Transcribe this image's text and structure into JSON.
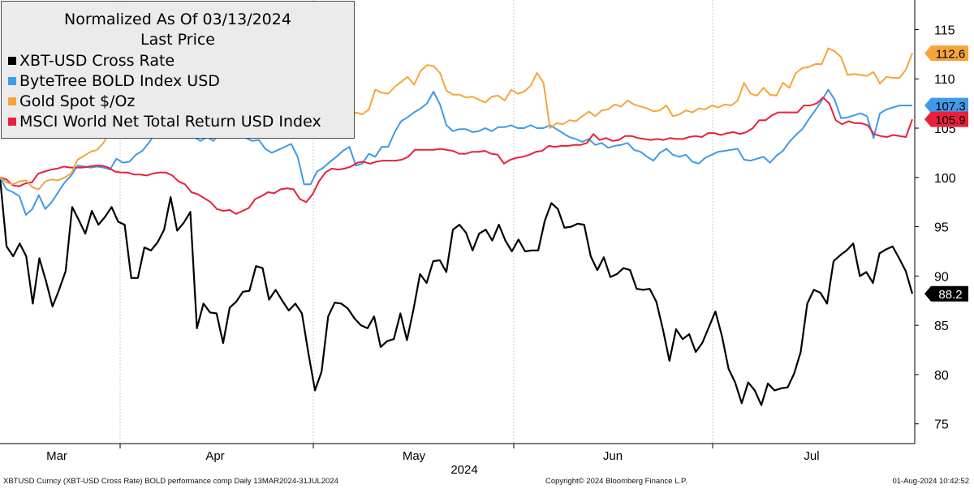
{
  "chart_data": {
    "type": "line",
    "title": "Normalized As Of 03/13/2024",
    "subtitle": "Last Price",
    "xlabel": "2024",
    "ylabel": "",
    "ylim": [
      73,
      118
    ],
    "x_start": "2024-03-13",
    "x_end": "2024-07-31",
    "month_labels": [
      "Mar",
      "Apr",
      "May",
      "Jun",
      "Jul"
    ],
    "yticks": [
      75,
      80,
      85,
      90,
      95,
      100,
      105,
      110,
      115
    ],
    "grid": "vertical month separators",
    "legend_position": "top-left",
    "series": [
      {
        "name": "XBT-USD Cross Rate",
        "color": "#000000",
        "last_value": "88.2",
        "values": [
          100,
          93,
          92,
          93.3,
          92,
          87.2,
          91.8,
          89.5,
          86.9,
          88.6,
          90.5,
          97,
          95.7,
          94.3,
          96.6,
          95.2,
          96,
          97,
          95.5,
          95.2,
          89.8,
          89.8,
          92.9,
          92.6,
          93.4,
          94.7,
          98,
          94.6,
          95.4,
          96.5,
          84.7,
          87.2,
          86.3,
          86.2,
          83.2,
          86.8,
          87.4,
          88.4,
          88.5,
          91,
          90.8,
          87.6,
          88.6,
          87.5,
          86.5,
          87.2,
          86.2,
          82.1,
          78.4,
          80.3,
          85.9,
          87.3,
          87.2,
          86.7,
          85.7,
          85,
          84.7,
          85.9,
          82.8,
          83.4,
          83.6,
          86.2,
          83.5,
          86.6,
          90.2,
          89.3,
          91.5,
          91.6,
          90.4,
          94.7,
          95.2,
          94.4,
          92.6,
          94.3,
          94.7,
          93.6,
          95.2,
          93.6,
          92.5,
          93.7,
          92.5,
          92.6,
          92.6,
          95.6,
          97.4,
          96.8,
          94.9,
          95,
          95.3,
          95.2,
          92,
          90.6,
          91.9,
          89.9,
          90.2,
          90.8,
          90.6,
          88.7,
          88.6,
          88.7,
          87.4,
          84.6,
          81.4,
          84.6,
          83.6,
          84.1,
          82.3,
          83.2,
          84.8,
          86.4,
          83.9,
          80.6,
          79.2,
          77.1,
          79.2,
          78.4,
          76.9,
          79.1,
          78.4,
          78.6,
          78.7,
          80.1,
          82.3,
          87.2,
          88.6,
          88.3,
          87.2,
          91.5,
          92.1,
          92.6,
          93.3,
          90,
          90.4,
          89.3,
          92.3,
          92.7,
          93,
          91.8,
          90.5,
          88.2
        ]
      },
      {
        "name": "ByteTree BOLD Index USD",
        "color": "#3f9ae8",
        "last_value": "107.3",
        "values": [
          100,
          98.8,
          98.5,
          98.1,
          96.2,
          96.8,
          98.2,
          96.8,
          97.5,
          98.5,
          99.5,
          100.2,
          101.2,
          101.1,
          101,
          101.1,
          101,
          100.8,
          101.9,
          101.5,
          101.6,
          102.3,
          102.7,
          103.5,
          104.5,
          105.5,
          106.2,
          107.2,
          106.3,
          104.8,
          104.1,
          103.7,
          104.1,
          103.7,
          104.6,
          104.3,
          104.8,
          104.6,
          104,
          103.7,
          103.8,
          102.9,
          102.5,
          102.8,
          103.1,
          103.4,
          102.1,
          99.3,
          99.3,
          100.6,
          101,
          101.6,
          102.1,
          102.7,
          103.1,
          101.2,
          101.4,
          102.4,
          102.1,
          103.1,
          103.1,
          104.6,
          105.7,
          106.1,
          106.6,
          107,
          107.5,
          108.7,
          107.4,
          105.3,
          104.7,
          104.9,
          104.9,
          104.6,
          104.7,
          105,
          104.7,
          105.1,
          105.1,
          105.3,
          105,
          105,
          105.3,
          105,
          105,
          105.3,
          104.9,
          104.5,
          104.1,
          103.9,
          103.6,
          103.9,
          103.3,
          103.5,
          103,
          103.2,
          103.3,
          103.5,
          102.8,
          102.6,
          102.1,
          101.7,
          102.5,
          102.9,
          102.3,
          102.1,
          102.3,
          101.6,
          101.4,
          102,
          102.3,
          102.6,
          102.7,
          102.8,
          102.9,
          101.8,
          101.7,
          101.9,
          102.1,
          101.5,
          102.2,
          102.7,
          103.6,
          104.3,
          104.9,
          105.9,
          106.8,
          107.8,
          108.9,
          107.9,
          106,
          106.1,
          106.3,
          106.5,
          106.2,
          104,
          106.5,
          106.9,
          107.1,
          107.3,
          107.3,
          107.3
        ]
      },
      {
        "name": "Gold Spot $/Oz",
        "color": "#f5a53a",
        "last_value": "112.6",
        "values": [
          100,
          99.5,
          99.3,
          99.6,
          99.7,
          99,
          98.8,
          99.6,
          99.8,
          99.7,
          100,
          100.4,
          101.8,
          102.2,
          102.6,
          102.8,
          103.5,
          104.7,
          105.1,
          105.2,
          105.6,
          105.8,
          107.7,
          107.8,
          107.9,
          107.9,
          107.4,
          108.4,
          107.3,
          107.6,
          107.7,
          107.3,
          106.7,
          106.3,
          105.6,
          106,
          106.5,
          106.4,
          106,
          106.4,
          105.9,
          107.3,
          106.6,
          106.9,
          106.6,
          106.4,
          105.7,
          105.7,
          105.4,
          105.6,
          105.3,
          106.3,
          105.6,
          106.4,
          105.9,
          106.6,
          106.4,
          106.9,
          108.9,
          108.6,
          108.5,
          109.2,
          109.7,
          110.2,
          109.4,
          110.8,
          111.4,
          111.3,
          110.6,
          108.8,
          108.4,
          108.4,
          108.1,
          108.2,
          107.9,
          107.6,
          108.2,
          108.3,
          107.8,
          108.9,
          108.5,
          108.7,
          109.3,
          110.6,
          109.6,
          105,
          105.5,
          105.4,
          105.8,
          105.7,
          106.2,
          106.7,
          106.2,
          106.8,
          106.9,
          107.4,
          107.2,
          107.8,
          107.4,
          107.2,
          107,
          106.7,
          106.8,
          107.3,
          106.2,
          106.4,
          106.8,
          106.6,
          107,
          106.9,
          107.3,
          107.1,
          107.4,
          107.3,
          107.8,
          109.6,
          108.5,
          108.3,
          109.1,
          108.4,
          108.3,
          109.6,
          109.1,
          110.6,
          111.1,
          111.2,
          111.5,
          111.5,
          113.1,
          112.8,
          112.2,
          110.4,
          110.5,
          110.4,
          110.3,
          110.7,
          109.5,
          110.2,
          110.1,
          110.1,
          110.9,
          112.6
        ]
      },
      {
        "name": "MSCI World Net Total Return USD Index",
        "color": "#e8213a",
        "last_value": "105.9",
        "values": [
          100,
          99.8,
          99.2,
          99.1,
          99.4,
          99.5,
          100.4,
          100.6,
          100.8,
          100.9,
          101.1,
          101,
          101,
          101,
          101.1,
          101.2,
          101.2,
          101,
          100.6,
          100.5,
          100.5,
          100.3,
          100.3,
          100.2,
          100.4,
          100.5,
          100.5,
          100.2,
          99.6,
          99.3,
          98.5,
          98.3,
          97.9,
          97.5,
          96.8,
          96.6,
          96.7,
          96.3,
          96.6,
          96.9,
          97.8,
          98.1,
          98.5,
          98.4,
          98.8,
          98.9,
          98.8,
          97.8,
          97.5,
          98.3,
          99.6,
          100.5,
          100.9,
          100.8,
          100.9,
          101.1,
          101.5,
          101.6,
          101.4,
          101.6,
          101.7,
          101.7,
          101.7,
          101.8,
          102.1,
          102.8,
          102.8,
          102.8,
          102.8,
          102.9,
          102.8,
          102.7,
          102.4,
          102.4,
          102.6,
          102.6,
          102.7,
          102.4,
          102.3,
          101.4,
          101.8,
          102,
          102.1,
          102.3,
          102.6,
          102.7,
          103.2,
          103.1,
          103.2,
          103.2,
          103.3,
          103.3,
          103.5,
          104.4,
          103.8,
          104,
          103.7,
          103.8,
          104.2,
          104.2,
          104,
          103.9,
          103.8,
          103.9,
          103.8,
          104,
          103.9,
          103.9,
          104.1,
          104.2,
          104.1,
          104.5,
          104.5,
          104.3,
          104.5,
          104.6,
          104.4,
          104.6,
          105,
          105.8,
          105.8,
          106.3,
          106.6,
          106.6,
          106.6,
          106.6,
          107.3,
          107.3,
          107.5,
          108.1,
          107.5,
          105.8,
          105.4,
          105.7,
          105.5,
          105.5,
          105.3,
          104.4,
          104.2,
          104.1,
          104.3,
          104.2,
          104.1,
          105.9
        ]
      }
    ]
  },
  "footer": {
    "left": "XBTUSD Curncy (XBT-USD Cross Rate) BOLD performance comp  Daily 13MAR2024-31JUL2024",
    "center": "Copyright© 2024 Bloomberg Finance L.P.",
    "right": "01-Aug-2024 10:42:52"
  }
}
